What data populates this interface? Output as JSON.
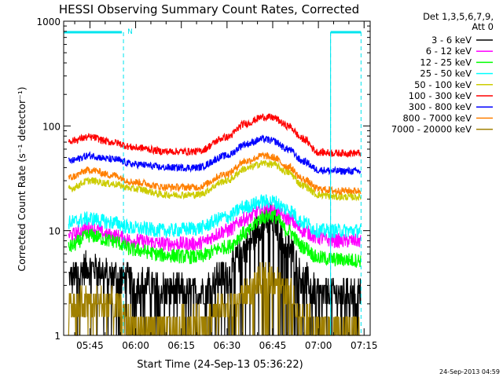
{
  "chart_data": {
    "type": "line",
    "title": "HESSI Observing Summary Count Rates, Corrected",
    "xlabel": "Start Time (24-Sep-13 05:36:22)",
    "ylabel": "Corrected Count Rate (s⁻¹ detector⁻¹)",
    "yscale": "log",
    "ylim": [
      1,
      1000
    ],
    "y_ticks": [
      {
        "value": 1,
        "label": "1"
      },
      {
        "value": 10,
        "label": "10"
      },
      {
        "value": 100,
        "label": "100"
      },
      {
        "value": 1000,
        "label": "1000"
      }
    ],
    "xlim": [
      "05:36:22",
      "07:17:00"
    ],
    "x_ticks": [
      "05:45",
      "06:00",
      "06:15",
      "06:30",
      "06:45",
      "07:00",
      "07:15"
    ],
    "x_tick_minutes": [
      345,
      360,
      375,
      390,
      405,
      420,
      435
    ],
    "x_minutes_range": [
      336.37,
      437
    ],
    "legend_header": [
      "Det 1,3,5,6,7,9,",
      "Att 0"
    ],
    "legend_placement": "right",
    "timestamp": "24-Sep-2013 04:59",
    "annotations": [
      {
        "text": "N",
        "at": "05:56"
      }
    ],
    "night_markers": [
      "05:56",
      "07:04",
      "07:14"
    ],
    "bars": [
      {
        "from": "05:36:22",
        "to": "05:55:30"
      },
      {
        "from": "07:04:00",
        "to": "07:14:00"
      }
    ],
    "series": [
      {
        "name": "3 - 6 keV",
        "color": "#000000",
        "x": [
          "05:38",
          "05:45",
          "05:52",
          "06:00",
          "06:10",
          "06:20",
          "06:30",
          "06:36",
          "06:42",
          "06:45",
          "06:50",
          "06:55",
          "07:00",
          "07:06",
          "07:14"
        ],
        "values": [
          3.5,
          4.5,
          3.8,
          3.2,
          2.8,
          2.6,
          3.8,
          7,
          12,
          13,
          7,
          3.5,
          2.5,
          2.6,
          2.6
        ]
      },
      {
        "name": "6 - 12 keV",
        "color": "#ff00ff",
        "x": [
          "05:38",
          "05:45",
          "05:52",
          "06:00",
          "06:10",
          "06:20",
          "06:30",
          "06:36",
          "06:42",
          "06:45",
          "06:50",
          "06:55",
          "07:00",
          "07:06",
          "07:14"
        ],
        "values": [
          9,
          10.5,
          9,
          8,
          7.5,
          7.5,
          10,
          13,
          16,
          16,
          13,
          10,
          8.5,
          8,
          8
        ]
      },
      {
        "name": "12 - 25 keV",
        "color": "#00ff00",
        "x": [
          "05:38",
          "05:45",
          "05:52",
          "06:00",
          "06:10",
          "06:20",
          "06:30",
          "06:36",
          "06:42",
          "06:45",
          "06:50",
          "06:55",
          "07:00",
          "07:06",
          "07:14"
        ],
        "values": [
          7,
          9,
          8,
          6.5,
          5.8,
          5.6,
          7,
          9.5,
          13.5,
          14,
          10,
          7,
          5.5,
          5.3,
          5.2
        ]
      },
      {
        "name": "25 - 50 keV",
        "color": "#00ffff",
        "x": [
          "05:38",
          "05:45",
          "05:52",
          "06:00",
          "06:10",
          "06:20",
          "06:30",
          "06:36",
          "06:42",
          "06:45",
          "06:50",
          "06:55",
          "07:00",
          "07:06",
          "07:14"
        ],
        "values": [
          12,
          13,
          12,
          10.5,
          10,
          10.5,
          13.5,
          17,
          19,
          19,
          16,
          12,
          10,
          10,
          10
        ]
      },
      {
        "name": "50 - 100 keV",
        "color": "#cccc00",
        "x": [
          "05:38",
          "05:45",
          "05:52",
          "06:00",
          "06:10",
          "06:20",
          "06:30",
          "06:36",
          "06:42",
          "06:45",
          "06:50",
          "06:55",
          "07:00",
          "07:06",
          "07:14"
        ],
        "values": [
          25,
          30,
          28,
          25,
          22,
          22,
          30,
          39,
          44,
          43,
          36,
          27,
          22,
          21,
          21
        ]
      },
      {
        "name": "100 - 300 keV",
        "color": "#ff0000",
        "x": [
          "05:38",
          "05:45",
          "05:52",
          "06:00",
          "06:10",
          "06:20",
          "06:30",
          "06:36",
          "06:42",
          "06:45",
          "06:50",
          "06:55",
          "07:00",
          "07:06",
          "07:14"
        ],
        "values": [
          72,
          78,
          70,
          62,
          57,
          57,
          78,
          105,
          122,
          120,
          100,
          75,
          56,
          55,
          55
        ]
      },
      {
        "name": "300 - 800 keV",
        "color": "#0000ff",
        "x": [
          "05:38",
          "05:45",
          "05:52",
          "06:00",
          "06:10",
          "06:20",
          "06:30",
          "06:36",
          "06:42",
          "06:45",
          "06:50",
          "06:55",
          "07:00",
          "07:06",
          "07:14"
        ],
        "values": [
          46,
          52,
          48,
          43,
          40,
          40,
          52,
          67,
          75,
          72,
          60,
          46,
          38,
          37,
          37
        ]
      },
      {
        "name": "800 - 7000 keV",
        "color": "#ff7f00",
        "x": [
          "05:38",
          "05:45",
          "05:52",
          "06:00",
          "06:10",
          "06:20",
          "06:30",
          "06:36",
          "06:42",
          "06:45",
          "06:50",
          "06:55",
          "07:00",
          "07:06",
          "07:14"
        ],
        "values": [
          32,
          38,
          34,
          29,
          26,
          26,
          35,
          46,
          52,
          50,
          41,
          31,
          25,
          24,
          24
        ]
      },
      {
        "name": "7000 - 20000 keV",
        "color": "#a08000",
        "x": [
          "05:38",
          "05:45",
          "05:52",
          "06:00",
          "06:10",
          "06:20",
          "06:30",
          "06:36",
          "06:42",
          "06:45",
          "06:50",
          "06:55",
          "07:00",
          "07:06",
          "07:14"
        ],
        "values": [
          2,
          2,
          2,
          1.2,
          1.2,
          1.3,
          1.8,
          2.5,
          3.5,
          3.5,
          2.5,
          1.5,
          1.2,
          1.2,
          1.2
        ]
      }
    ]
  }
}
